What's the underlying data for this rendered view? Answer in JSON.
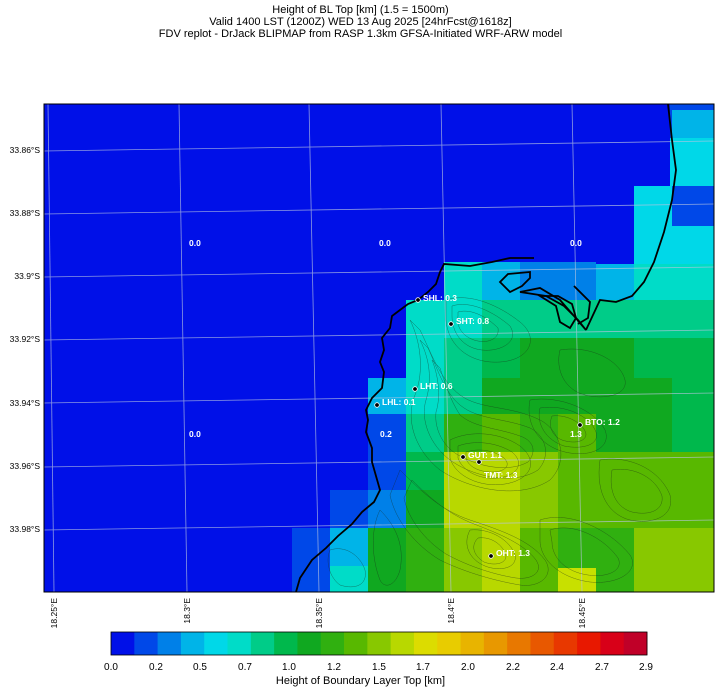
{
  "header": {
    "line1": "Height of BL Top [km] (1.5 = 1500m)",
    "line2": "Valid 1400 LST (1200Z) WED 13 Aug 2025 [24hrFcst@1618z]",
    "line3": "FDV replot - DrJack BLIPMAP from RASP 1.3km GFSA-Initiated WRF-ARW model"
  },
  "axes": {
    "lat_ticks": [
      "33.86°S",
      "33.88°S",
      "33.9°S",
      "33.92°S",
      "33.94°S",
      "33.96°S",
      "33.98°S"
    ],
    "lon_ticks": [
      "18.25°E",
      "18.3°E",
      "18.35°E",
      "18.4°E",
      "18.45°E"
    ]
  },
  "colorbar": {
    "label": "Height of Boundary Layer Top [km]",
    "ticks": [
      "0.0",
      "0.2",
      "0.5",
      "0.7",
      "1.0",
      "1.2",
      "1.5",
      "1.7",
      "2.0",
      "2.2",
      "2.4",
      "2.7",
      "2.9"
    ],
    "colors": [
      "#0010e8",
      "#0048e8",
      "#0080e8",
      "#00b4e8",
      "#00d8e8",
      "#00dcc8",
      "#00cc88",
      "#00b84c",
      "#10a820",
      "#30b010",
      "#58b800",
      "#88c800",
      "#b8d800",
      "#dcdc00",
      "#e8cc00",
      "#e8b400",
      "#e89800",
      "#e87800",
      "#e85800",
      "#e83800",
      "#e81800",
      "#d80018",
      "#c00028"
    ]
  },
  "sites": [
    {
      "name": "SHL",
      "label": "SHL: 0.3"
    },
    {
      "name": "SHT",
      "label": "SHT: 0.8"
    },
    {
      "name": "LHT",
      "label": "LHT: 0.6"
    },
    {
      "name": "LHL",
      "label": "LHL: 0.1"
    },
    {
      "name": "GUT",
      "label": "GUT: 1.1"
    },
    {
      "name": "TMT",
      "label": "TMT: 1.3"
    },
    {
      "name": "BTO",
      "label": "BTO: 1.2"
    },
    {
      "name": "OHT",
      "label": "OHT: 1.3"
    }
  ],
  "grid_values": [
    "0.0",
    "0.0",
    "0.0",
    "0.0",
    "0.2",
    "1.3"
  ]
}
